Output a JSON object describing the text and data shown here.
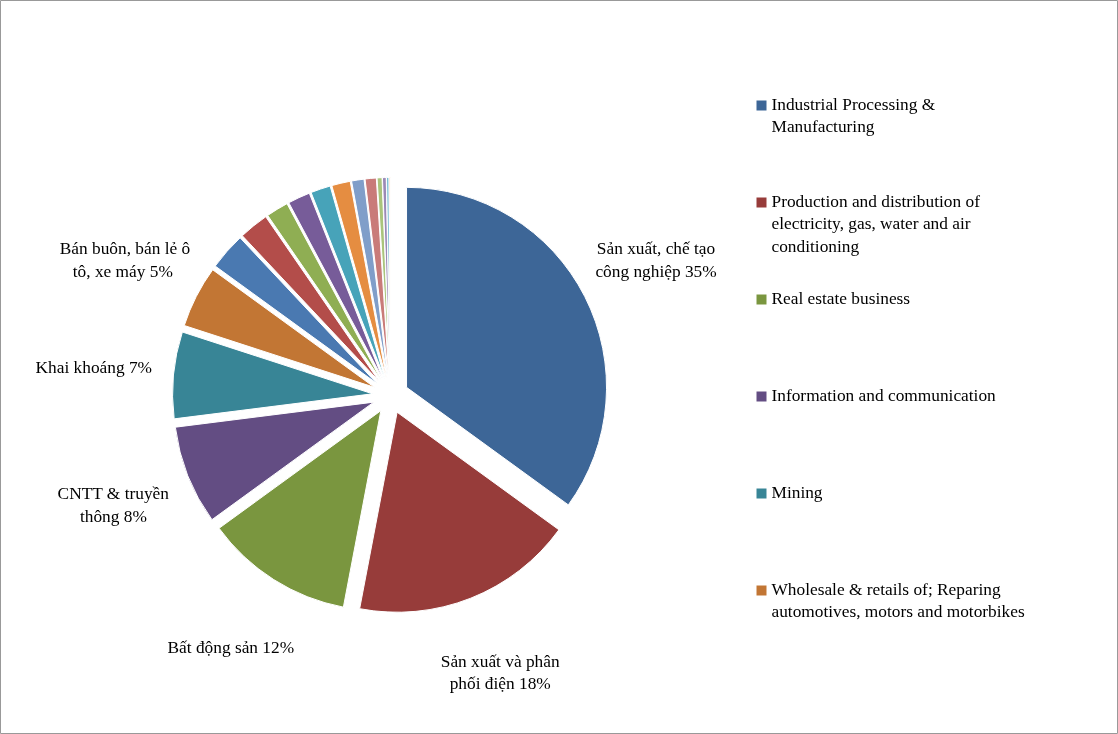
{
  "chart_data": {
    "type": "pie",
    "categories": [
      "Industrial Processing & Manufacturing",
      "Production and distribution of electricity, gas, water and air conditioning",
      "Real estate business",
      "Information and communication",
      "Mining",
      "Wholesale & retails of; Reparing automotives, motors and motorbikes",
      null,
      null,
      null,
      null,
      null,
      null,
      null,
      null,
      null,
      null,
      null,
      null
    ],
    "values": [
      35,
      18,
      12,
      8,
      7,
      5,
      3.0,
      2.4,
      1.8,
      1.8,
      1.6,
      1.5,
      1.0,
      0.9,
      0.4,
      0.3,
      0.2,
      0.1
    ],
    "colors": [
      "#3d6697",
      "#973c3a",
      "#7a963f",
      "#634d83",
      "#388596",
      "#c27634",
      "#4a79b1",
      "#b34d4a",
      "#8fae53",
      "#775c99",
      "#47a3b9",
      "#e58d41",
      "#809ec9",
      "#c97b79",
      "#aac47c",
      "#9b89b5",
      "#73bbd3",
      "#f4ae77"
    ],
    "value_labels": [
      "Sản xuất, chế tạo công nghiệp 35%",
      "Sản xuất và phân phối điện 18%",
      "Bất động sản 12%",
      "CNTT & truyền thông 8%",
      "Khai khoáng 7%",
      "Bán buôn, bán lẻ ô tô, xe máy  5%",
      null,
      null,
      null,
      null,
      null,
      null,
      null,
      null,
      null,
      null,
      null,
      null
    ],
    "legend": "right"
  }
}
